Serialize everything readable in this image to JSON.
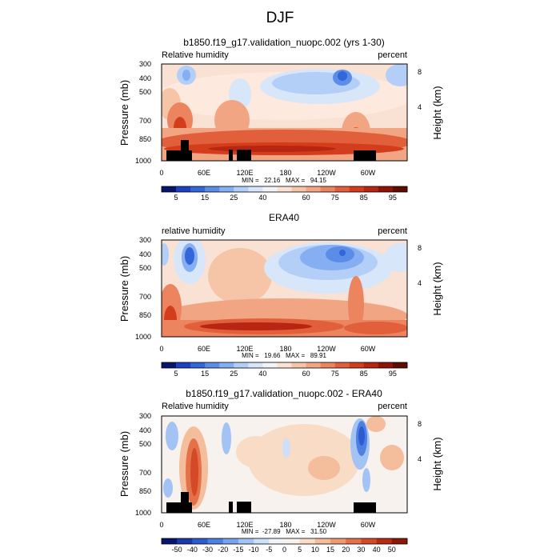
{
  "figure": {
    "season": "DJF",
    "colors": {
      "ocean_mask": "#000000",
      "frame": "#000000"
    }
  },
  "chart_data": [
    {
      "type": "heatmap",
      "title": "b1850.f19_g17.validation_nuopc.002 (yrs 1-30)",
      "left_label": "Relative humidity",
      "right_label": "percent",
      "ylabel": "Pressure (mb)",
      "ylabel_right": "Height (km)",
      "xlabel": "",
      "x_ticks": [
        "0",
        "60E",
        "120E",
        "180",
        "120W",
        "60W"
      ],
      "y_ticks": [
        "300",
        "400",
        "500",
        "700",
        "850",
        "1000"
      ],
      "y_right_ticks": [
        "8",
        "4"
      ],
      "ylim": [
        1000,
        300
      ],
      "stats": "MIN =   22.16   MAX =   94.15",
      "min": 22.16,
      "max": 94.15,
      "colorbar": {
        "labels": [
          "5",
          "15",
          "25",
          "40",
          "60",
          "75",
          "85",
          "95"
        ],
        "colors": [
          "#06166f",
          "#1d40c2",
          "#3366d8",
          "#5b8ce8",
          "#86aef2",
          "#b3cff7",
          "#d8e6fa",
          "#f2f4f7",
          "#f9e2d3",
          "#f6c4a6",
          "#f2a582",
          "#ec8460",
          "#e25f3b",
          "#d43d1c",
          "#b82510",
          "#8d1407",
          "#5e0b02"
        ]
      },
      "mask_label": "topography"
    },
    {
      "type": "heatmap",
      "title": "ERA40",
      "left_label": "relative humidity",
      "right_label": "percent",
      "ylabel": "Pressure (mb)",
      "ylabel_right": "Height (km)",
      "xlabel": "",
      "x_ticks": [
        "0",
        "60E",
        "120E",
        "180",
        "120W",
        "60W"
      ],
      "y_ticks": [
        "300",
        "400",
        "500",
        "700",
        "850",
        "1000"
      ],
      "y_right_ticks": [
        "8",
        "4"
      ],
      "ylim": [
        1000,
        300
      ],
      "stats": "MIN =   19.66   MAX =   89.91",
      "min": 19.66,
      "max": 89.91,
      "colorbar": {
        "labels": [
          "5",
          "15",
          "25",
          "40",
          "60",
          "75",
          "85",
          "95"
        ],
        "colors": [
          "#06166f",
          "#1d40c2",
          "#3366d8",
          "#5b8ce8",
          "#86aef2",
          "#b3cff7",
          "#d8e6fa",
          "#f2f4f7",
          "#f9e2d3",
          "#f6c4a6",
          "#f2a582",
          "#ec8460",
          "#e25f3b",
          "#d43d1c",
          "#b82510",
          "#8d1407",
          "#5e0b02"
        ]
      }
    },
    {
      "type": "heatmap",
      "title": "b1850.f19_g17.validation_nuopc.002 - ERA40",
      "left_label": "Relative humidity",
      "right_label": "percent",
      "ylabel": "Pressure (mb)",
      "ylabel_right": "Height (km)",
      "xlabel": "",
      "x_ticks": [
        "0",
        "60E",
        "120E",
        "180",
        "120W",
        "60W"
      ],
      "y_ticks": [
        "300",
        "400",
        "500",
        "700",
        "850",
        "1000"
      ],
      "y_right_ticks": [
        "8",
        "4"
      ],
      "ylim": [
        1000,
        300
      ],
      "stats": "MIN =  -27.89   MAX =   31.50",
      "min": -27.89,
      "max": 31.5,
      "colorbar": {
        "labels": [
          "-50",
          "-40",
          "-30",
          "-20",
          "-15",
          "-10",
          "-5",
          "0",
          "5",
          "10",
          "15",
          "20",
          "30",
          "40",
          "50"
        ],
        "colors": [
          "#06166f",
          "#1a3aa8",
          "#2e5cd0",
          "#4d80e2",
          "#77a3ee",
          "#a3c3f5",
          "#cddff9",
          "#f0f3f7",
          "#f7f2ee",
          "#f8dcc6",
          "#f4bd9c",
          "#ee9a73",
          "#e4714a",
          "#d54a26",
          "#b82a12",
          "#8a1707"
        ]
      },
      "mask_label": "topography"
    }
  ]
}
